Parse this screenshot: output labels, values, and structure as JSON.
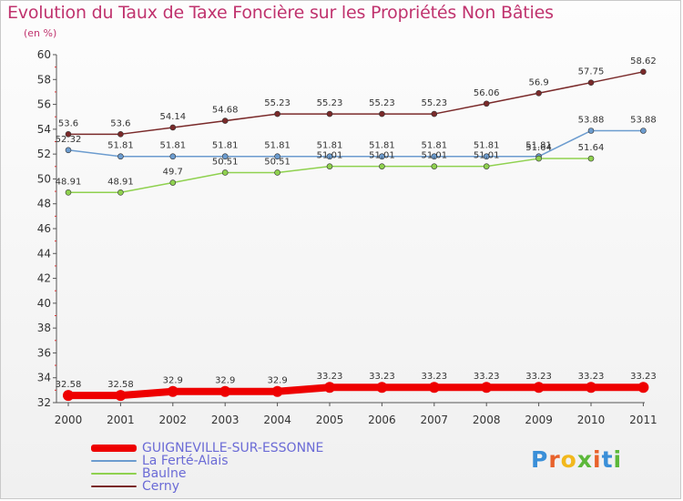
{
  "title": "Evolution du Taux de Taxe Foncière sur les Propriétés Non Bâties",
  "subtitle": "(en %)",
  "logo_text": "Proxiti",
  "chart_data": {
    "type": "line",
    "title": "Evolution du Taux de Taxe Foncière sur les Propriétés Non Bâties",
    "ylabel": "(en %)",
    "xlabel": "",
    "x": [
      "2000",
      "2001",
      "2002",
      "2003",
      "2004",
      "2005",
      "2006",
      "2007",
      "2008",
      "2009",
      "2010",
      "2011"
    ],
    "ylim": [
      32,
      60
    ],
    "yticks": [
      "32",
      "34",
      "36",
      "38",
      "40",
      "42",
      "44",
      "46",
      "48",
      "50",
      "52",
      "54",
      "56",
      "58",
      "60"
    ],
    "grid": false,
    "legend_position": "bottom",
    "series": [
      {
        "name": "GUIGNEVILLE-SUR-ESSONNE",
        "color": "#ee0000",
        "values": [
          32.58,
          32.58,
          32.9,
          32.9,
          32.9,
          33.23,
          33.23,
          33.23,
          33.23,
          33.23,
          33.23,
          33.23
        ],
        "labels": [
          "32.58",
          "32.58",
          "32.9",
          "32.9",
          "32.9",
          "33.23",
          "33.23",
          "33.23",
          "33.23",
          "33.23",
          "33.23",
          "33.23"
        ]
      },
      {
        "name": "La Ferté-Alais",
        "color": "#6c9ccf",
        "values": [
          52.32,
          51.81,
          51.81,
          51.81,
          51.81,
          51.81,
          51.81,
          51.81,
          51.81,
          51.81,
          53.88,
          53.88
        ],
        "labels": [
          "52.32",
          "51.81",
          "51.81",
          "51.81",
          "51.81",
          "51.81",
          "51.81",
          "51.81",
          "51.81",
          "51.81",
          "53.88",
          "53.88"
        ]
      },
      {
        "name": "Baulne",
        "color": "#8fd14f",
        "values": [
          48.91,
          48.91,
          49.7,
          50.51,
          50.51,
          51.01,
          51.01,
          51.01,
          51.01,
          51.64,
          51.64,
          null
        ],
        "labels": [
          "48.91",
          "48.91",
          "49.7",
          "50.51",
          "50.51",
          "51.01",
          "51.01",
          "51.01",
          "51.01",
          "51.64",
          "51.64",
          null
        ]
      },
      {
        "name": "Cerny",
        "color": "#7a2a2a",
        "values": [
          53.6,
          53.6,
          54.14,
          54.68,
          55.23,
          55.23,
          55.23,
          55.23,
          56.06,
          56.9,
          57.75,
          58.62
        ],
        "labels": [
          "53.6",
          "53.6",
          "54.14",
          "54.68",
          "55.23",
          "55.23",
          "55.23",
          "55.23",
          "56.06",
          "56.9",
          "57.75",
          "58.62"
        ]
      }
    ]
  }
}
